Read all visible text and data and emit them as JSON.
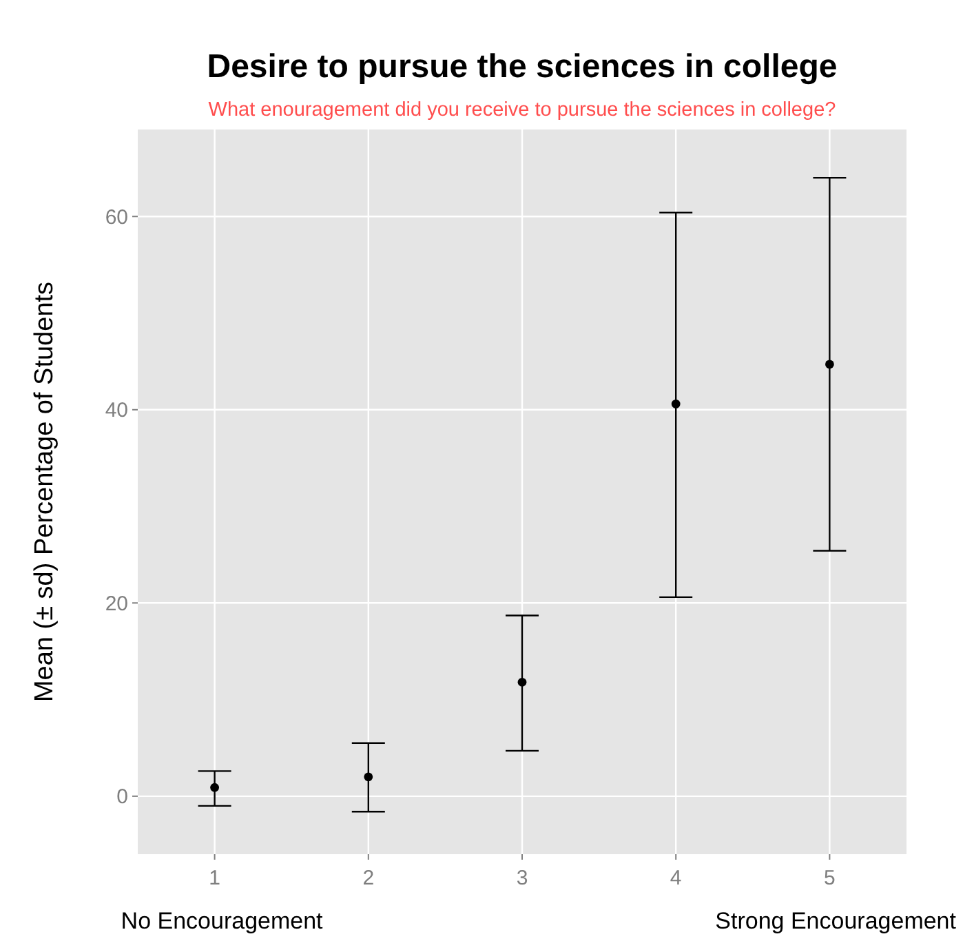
{
  "chart_data": {
    "type": "scatter",
    "title": "Desire to pursue the sciences in college",
    "subtitle": "What enouragement did you receive to pursue the sciences in college?",
    "ylabel": "Mean (± sd) Percentage of Students",
    "categories": [
      "1",
      "2",
      "3",
      "4",
      "5"
    ],
    "series": [
      {
        "color": "#000000",
        "values": [
          0.9,
          2.0,
          11.8,
          40.6,
          44.7
        ],
        "errors": [
          [
            -1.0,
            2.6
          ],
          [
            -1.6,
            5.5
          ],
          [
            4.7,
            18.7
          ],
          [
            20.6,
            60.4
          ],
          [
            25.4,
            64.0
          ]
        ]
      }
    ],
    "ylim": [
      -6,
      69
    ],
    "yticks": [
      0,
      20,
      40,
      60
    ],
    "grid": true,
    "marker": "circle",
    "annotations": [
      "No Encouragement",
      "Strong Encouragement"
    ]
  }
}
